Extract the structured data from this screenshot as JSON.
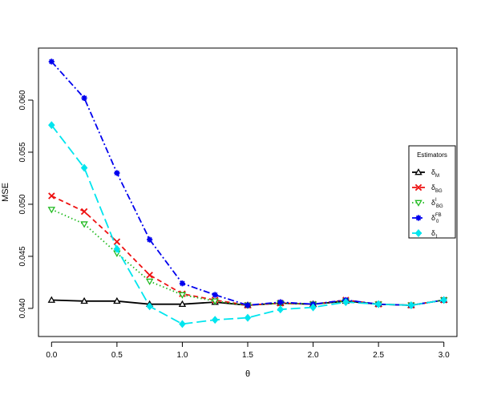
{
  "chart_data": {
    "type": "line",
    "title": "",
    "xlabel": "θ",
    "ylabel": "MSE",
    "xlim": [
      -0.1,
      3.1
    ],
    "ylim": [
      0.0373,
      0.065
    ],
    "x_ticks": [
      0.0,
      0.5,
      1.0,
      1.5,
      2.0,
      2.5,
      3.0
    ],
    "x_tick_labels": [
      "0.0",
      "0.5",
      "1.0",
      "1.5",
      "2.0",
      "2.5",
      "3.0"
    ],
    "y_ticks": [
      0.04,
      0.045,
      0.05,
      0.055,
      0.06
    ],
    "y_tick_labels": [
      "0.040",
      "0.045",
      "0.050",
      "0.055",
      "0.060"
    ],
    "grid": false,
    "legend": {
      "title": "Estimators",
      "placement": "right",
      "entries": [
        {
          "base": "δ",
          "sub": "M",
          "sup": ""
        },
        {
          "base": "δ",
          "sub": "BG",
          "sup": ""
        },
        {
          "base": "δ",
          "sub": "BG",
          "sup": "I"
        },
        {
          "base": "δ",
          "sub": "0",
          "sup": "FB"
        },
        {
          "base": "δ",
          "sub": "1",
          "sup": ""
        }
      ]
    },
    "x": [
      0.0,
      0.25,
      0.5,
      0.75,
      1.0,
      1.25,
      1.5,
      1.75,
      2.0,
      2.25,
      2.5,
      2.75,
      3.0
    ],
    "series": [
      {
        "color": "#000000",
        "marker": "triangle-open",
        "dash": "solid",
        "values": [
          0.0408,
          0.0407,
          0.0407,
          0.0404,
          0.0404,
          0.0406,
          0.0403,
          0.0405,
          0.0404,
          0.0407,
          0.0404,
          0.0403,
          0.0408
        ]
      },
      {
        "color": "#ee1111",
        "marker": "x",
        "dash": "dashed",
        "values": [
          0.0508,
          0.0493,
          0.0464,
          0.0432,
          0.0414,
          0.0408,
          0.0403,
          0.0405,
          0.0404,
          0.0408,
          0.0404,
          0.0403,
          0.0408
        ]
      },
      {
        "color": "#22bb22",
        "marker": "triangle-down-open",
        "dash": "dotted",
        "values": [
          0.0495,
          0.0481,
          0.0453,
          0.0426,
          0.0413,
          0.0407,
          0.0403,
          0.0405,
          0.0404,
          0.0407,
          0.0404,
          0.0403,
          0.0408
        ]
      },
      {
        "color": "#0000ee",
        "marker": "asterisk",
        "dash": "dashdot",
        "values": [
          0.0637,
          0.0602,
          0.053,
          0.0466,
          0.0424,
          0.0413,
          0.0403,
          0.0406,
          0.0404,
          0.0408,
          0.0404,
          0.0403,
          0.0408
        ]
      },
      {
        "color": "#00e5ee",
        "marker": "diamond",
        "dash": "longdash",
        "values": [
          0.0576,
          0.0535,
          0.0457,
          0.0402,
          0.0385,
          0.0389,
          0.0391,
          0.0399,
          0.0401,
          0.0406,
          0.0404,
          0.0403,
          0.0408
        ]
      }
    ]
  }
}
